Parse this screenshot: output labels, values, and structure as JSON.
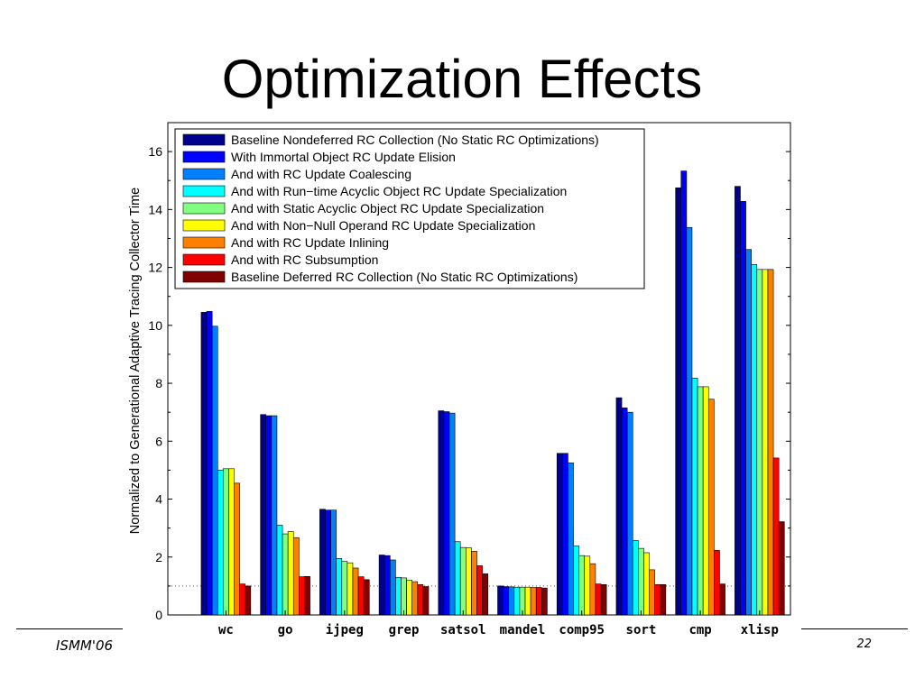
{
  "slide": {
    "title": "Optimization Effects",
    "footer_left": "ISMM'06",
    "page_number": "22"
  },
  "chart_data": {
    "type": "bar",
    "title": "",
    "xlabel": "",
    "ylabel": "Normalized to Generational Adaptive Tracing Collector Time",
    "ylim": [
      0,
      17
    ],
    "yticks": [
      0,
      2,
      4,
      6,
      8,
      10,
      12,
      14,
      16
    ],
    "reference_line": 1,
    "grid": false,
    "legend_position": "top-left",
    "categories": [
      "wc",
      "go",
      "ijpeg",
      "grep",
      "satsol",
      "mandel",
      "comp95",
      "sort",
      "cmp",
      "xlisp"
    ],
    "series": [
      {
        "name": "Baseline Nondeferred RC Collection (No Static RC Optimizations)",
        "color": "#00008f",
        "values": [
          10.45,
          6.92,
          3.65,
          2.07,
          7.05,
          1.0,
          5.58,
          7.5,
          14.75,
          14.8
        ]
      },
      {
        "name": "With Immortal Object RC Update Elision",
        "color": "#0000ff",
        "values": [
          10.48,
          6.88,
          3.62,
          2.05,
          7.02,
          0.98,
          5.58,
          7.15,
          15.33,
          14.28
        ]
      },
      {
        "name": "And with RC Update Coalescing",
        "color": "#0080ff",
        "values": [
          9.97,
          6.88,
          3.62,
          1.9,
          6.97,
          0.97,
          5.25,
          7.0,
          13.38,
          12.62
        ]
      },
      {
        "name": "And with Run−time Acyclic Object RC Update Specialization",
        "color": "#00ffff",
        "values": [
          5.0,
          3.1,
          1.95,
          1.3,
          2.53,
          0.96,
          2.38,
          2.57,
          8.18,
          12.1
        ]
      },
      {
        "name": "And with Static Acyclic Object RC Update Specialization",
        "color": "#80ff80",
        "values": [
          5.05,
          2.8,
          1.85,
          1.28,
          2.33,
          0.96,
          2.05,
          2.3,
          7.88,
          11.93
        ]
      },
      {
        "name": "And with Non−Null Operand RC Update Specialization",
        "color": "#ffff00",
        "values": [
          5.05,
          2.88,
          1.8,
          1.2,
          2.32,
          0.96,
          2.03,
          2.15,
          7.88,
          11.93
        ]
      },
      {
        "name": "And with RC Update Inlining",
        "color": "#ff8000",
        "values": [
          4.55,
          2.67,
          1.62,
          1.15,
          2.2,
          0.95,
          1.77,
          1.56,
          7.45,
          11.93
        ]
      },
      {
        "name": "And with RC Subsumption",
        "color": "#ff0000",
        "values": [
          1.07,
          1.32,
          1.32,
          1.05,
          1.7,
          0.95,
          1.07,
          1.05,
          2.23,
          5.42
        ]
      },
      {
        "name": "Baseline Deferred RC Collection (No Static RC Optimizations)",
        "color": "#800000",
        "values": [
          1.0,
          1.33,
          1.22,
          0.98,
          1.42,
          0.93,
          1.05,
          1.05,
          1.07,
          3.22
        ]
      }
    ]
  }
}
